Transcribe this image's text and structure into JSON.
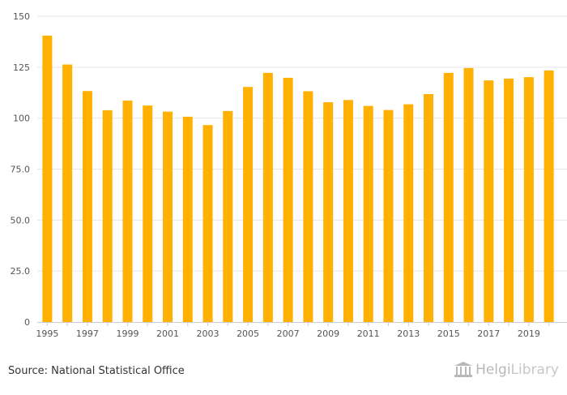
{
  "chart_data": {
    "type": "bar",
    "categories": [
      "1995",
      "1996",
      "1997",
      "1998",
      "1999",
      "2000",
      "2001",
      "2002",
      "2003",
      "2004",
      "2005",
      "2006",
      "2007",
      "2008",
      "2009",
      "2010",
      "2011",
      "2012",
      "2013",
      "2014",
      "2015",
      "2016",
      "2017",
      "2018",
      "2019",
      "2020"
    ],
    "values": [
      140.5,
      126.3,
      113.3,
      103.9,
      108.6,
      106.2,
      103.2,
      100.7,
      96.6,
      103.5,
      115.3,
      122.2,
      119.8,
      113.2,
      107.8,
      108.9,
      106.0,
      104.0,
      106.8,
      111.8,
      122.2,
      124.6,
      118.5,
      119.4,
      120.1,
      123.4
    ],
    "x_tick_labels": [
      "1995",
      "1997",
      "1999",
      "2001",
      "2003",
      "2005",
      "2007",
      "2009",
      "2011",
      "2013",
      "2015",
      "2017",
      "2019"
    ],
    "y_ticks": [
      0,
      25,
      50,
      75,
      100,
      125,
      150
    ],
    "y_tick_labels": [
      "0",
      "25.0",
      "50.0",
      "75.0",
      "100",
      "125",
      "150"
    ],
    "ylim": [
      0,
      150
    ],
    "title": "",
    "xlabel": "",
    "ylabel": "",
    "grid": true,
    "bar_color": "#FFB000"
  },
  "footer": {
    "source": "Source: National Statistical Office",
    "logo_brand": "Helgi",
    "logo_suffix": "Library"
  }
}
